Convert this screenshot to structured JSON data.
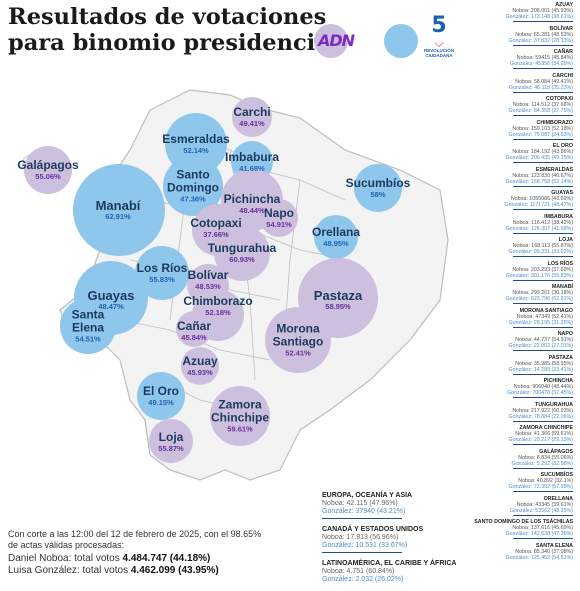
{
  "title_line1": "Resultados de votaciones",
  "title_line2": "para binomio presidencial",
  "logos": {
    "adn": "ADN",
    "rc_number": "5",
    "rc_name": "REVOLUCIÓN CIUDADANA"
  },
  "colors": {
    "noboa": "#cdbfde",
    "gonzalez": "#8fc6ec",
    "noboa_text": "#6a2fa0",
    "gonzalez_text": "#1e64b4"
  },
  "map_provinces": [
    {
      "name": "Carchi",
      "pct": "49.41%",
      "winner": "noboa"
    },
    {
      "name": "Esmeraldas",
      "pct": "52.14%",
      "winner": "gonzalez"
    },
    {
      "name": "Imbabura",
      "pct": "41.68%",
      "winner": "gonzalez"
    },
    {
      "name": "Galápagos",
      "pct": "55.06%",
      "winner": "noboa"
    },
    {
      "name": "Santo Domingo",
      "pct": "47.36%",
      "winner": "gonzalez"
    },
    {
      "name": "Pichincha",
      "pct": "48.44%",
      "winner": "noboa"
    },
    {
      "name": "Manabí",
      "pct": "62.91%",
      "winner": "gonzalez"
    },
    {
      "name": "Napo",
      "pct": "54.91%",
      "winner": "noboa"
    },
    {
      "name": "Sucumbíos",
      "pct": "58%",
      "winner": "gonzalez"
    },
    {
      "name": "Cotopaxi",
      "pct": "37.66%",
      "winner": "noboa"
    },
    {
      "name": "Orellana",
      "pct": "48.95%",
      "winner": "gonzalez"
    },
    {
      "name": "Tungurahua",
      "pct": "60.93%",
      "winner": "noboa"
    },
    {
      "name": "Los Ríos",
      "pct": "55.83%",
      "winner": "gonzalez"
    },
    {
      "name": "Bolívar",
      "pct": "48.53%",
      "winner": "noboa"
    },
    {
      "name": "Guayas",
      "pct": "48.47%",
      "winner": "gonzalez"
    },
    {
      "name": "Pastaza",
      "pct": "58.95%",
      "winner": "noboa"
    },
    {
      "name": "Chimborazo",
      "pct": "52.18%",
      "winner": "noboa"
    },
    {
      "name": "Santa Elena",
      "pct": "54.51%",
      "winner": "gonzalez"
    },
    {
      "name": "Cañar",
      "pct": "45.84%",
      "winner": "noboa"
    },
    {
      "name": "Morona Santiago",
      "pct": "52.41%",
      "winner": "noboa"
    },
    {
      "name": "Azuay",
      "pct": "45.93%",
      "winner": "noboa"
    },
    {
      "name": "El Oro",
      "pct": "49.15%",
      "winner": "gonzalez"
    },
    {
      "name": "Zamora Chinchipe",
      "pct": "59.61%",
      "winner": "noboa"
    },
    {
      "name": "Loja",
      "pct": "55.87%",
      "winner": "noboa"
    }
  ],
  "side_results": [
    {
      "province": "AZUAY",
      "noboa": "Noboa: 206.001 (45.93%)",
      "gonzalez": "González: 173.148 (38.61%)"
    },
    {
      "province": "BOLÍVAR",
      "noboa": "Noboa: 65.281 (48.53%)",
      "gonzalez": "González: 37.832 (28.13%)"
    },
    {
      "province": "CAÑAR",
      "noboa": "Noboa: 59415 (45.84%)",
      "gonzalez": "González: 45356 (34.99%)"
    },
    {
      "province": "CARCHI",
      "noboa": "Noboa: 58.084 (49.41%)",
      "gonzalez": "González: 46.118 (35.23%)"
    },
    {
      "province": "COTOPAXI",
      "noboa": "Noboa: 114.512 (37.66%)",
      "gonzalez": "González: 84.358 (27.75%)"
    },
    {
      "province": "CHIMBORAZO",
      "noboa": "Noboa: 159.103 (52.18%)",
      "gonzalez": "González: 75.087 (24.63%)"
    },
    {
      "province": "EL ORO",
      "noboa": "Noboa: 184.192 (43.86%)",
      "gonzalez": "González: 206.435 (49.15%)"
    },
    {
      "province": "ESMERALDAS",
      "noboa": "Noboa: 123.830 (40.67%)",
      "gonzalez": "González: 158.758 (52.14%)"
    },
    {
      "province": "GUAYAS",
      "noboa": "Noboa: 1055086 (43.69%)",
      "gonzalez": "González: 1171721 (48.47%)"
    },
    {
      "province": "IMBABURA",
      "noboa": "Noboa: 116.412 (38.42%)",
      "gonzalez": "González: 126.307 (41.68%)"
    },
    {
      "province": "LOJA",
      "noboa": "Noboa: 168.113 (55.87%)",
      "gonzalez": "González: 99.331 (33.02%)"
    },
    {
      "province": "LOS RÍOS",
      "noboa": "Noboa: 203.293 (37.69%)",
      "gonzalez": "González: 301.176 (55.83%)"
    },
    {
      "province": "MANABÍ",
      "noboa": "Noboa: 299.201 (30.18%)",
      "gonzalez": "González: 623.796 (62.91%)"
    },
    {
      "province": "MORONA SANTIAGO",
      "noboa": "Noboa: 47349 (52.41%)",
      "gonzalez": "González: 28.195 (31.25%)"
    },
    {
      "province": "NAPO",
      "noboa": "Noboa: 44.737 (54.91%)",
      "gonzalez": "González: 22.002 (27.01%)"
    },
    {
      "province": "PASTAZA",
      "noboa": "Noboa: 35.985 (58.95%)",
      "gonzalez": "González: 14.289 (23.41%)"
    },
    {
      "province": "PICHINCHA",
      "noboa": "Noboa: 906040 (48.44%)",
      "gonzalez": "González: 700478 (37.45%)"
    },
    {
      "province": "TUNGURAHUA",
      "noboa": "Noboa: 217.922 (60.93%)",
      "gonzalez": "González: 78.884 (22.06%)"
    },
    {
      "province": "ZAMORA CHINCHIPE",
      "noboa": "Noboa: 41.366 (59.61%)",
      "gonzalez": "González: 20.217 (29.13%)"
    },
    {
      "province": "GALÁPAGOS",
      "noboa": "Noboa: 8.834 (55.06%)",
      "gonzalez": "González: 5.292 (32.98%)"
    },
    {
      "province": "SUCUMBÍOS",
      "noboa": "Noboa: 40.892 (32.1%)",
      "gonzalez": "González: 73.392 (57.99%)"
    },
    {
      "province": "ORELLANA",
      "noboa": "Noboa: 43345 (39.61%)",
      "gonzalez": "González: 53562 (48.95%)"
    },
    {
      "province": "SANTO DOMINGO DE LOS TSÁCHILAS",
      "noboa": "Noboa: 137.616 (45.69%)",
      "gonzalez": "González: 142.638 (47.36%)"
    },
    {
      "province": "SANTA ELENA",
      "noboa": "Noboa: 85.340 (37.08%)",
      "gonzalez": "González: 125.452 (54.51%)"
    }
  ],
  "abroad_results": [
    {
      "region": "EUROPA, OCEANÍA Y ASIA",
      "noboa": "Noboa: 42.115 (47.96%)",
      "gonzalez": "González: 37940 (43.21%)"
    },
    {
      "region": "CANADÁ Y ESTADOS UNIDOS",
      "noboa": "Noboa: 17.813 (56.96%)",
      "gonzalez": "González: 10.531 (33.67%)"
    },
    {
      "region": "LATINOAMÉRICA, EL CARIBE Y ÁFRICA",
      "noboa": "Noboa: 4.751 (60.84%)",
      "gonzalez": "González: 2.032 (26.02%)"
    }
  ],
  "footnote": {
    "cutoff_line1": "Con corte a las 12:00 del 12 de febrero de 2025, con el 98.65%",
    "cutoff_line2": "de actas válidas procesadas:",
    "noboa_prefix": "Daniel Noboa: total votos ",
    "noboa_total": "4.484.747 (44.18%)",
    "gonzalez_prefix": "Luisa González: total votos ",
    "gonzalez_total": "4.462.099 (43.95%)"
  }
}
